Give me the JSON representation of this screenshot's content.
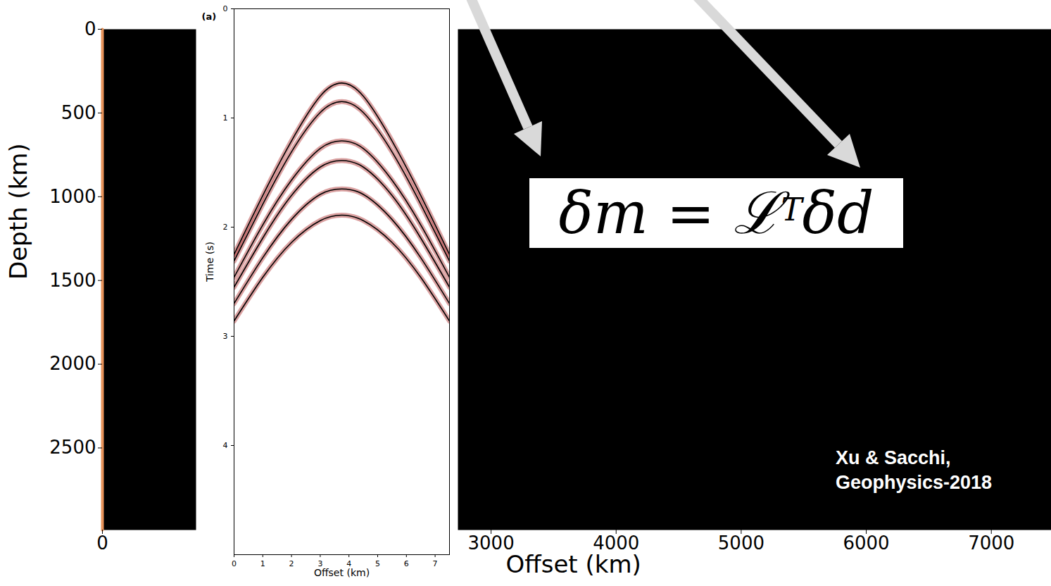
{
  "chart_data": [
    {
      "type": "line",
      "ylabel": "Depth (km)",
      "xlim": [
        0,
        1
      ],
      "xticks": [
        0
      ],
      "ylim": [
        0,
        2990
      ],
      "yticks": [
        0,
        500,
        1000,
        1500,
        2000,
        2500
      ],
      "x": [
        0,
        0
      ],
      "y": [
        0,
        2990
      ],
      "color": "#e8935a"
    },
    {
      "type": "line",
      "panel_label": "(a)",
      "xlabel": "Offset (km)",
      "ylabel": "Time (s)",
      "xlim": [
        0,
        7.5
      ],
      "xticks": [
        0,
        1,
        2,
        3,
        4,
        5,
        6,
        7
      ],
      "ylim": [
        0,
        5
      ],
      "yticks": [
        0,
        1,
        2,
        3,
        4
      ],
      "x": [
        0,
        1,
        2,
        3,
        3.75,
        4.5,
        5.5,
        6.5,
        7.5
      ],
      "color": "#b03030",
      "series": [
        {
          "values": [
            2.25,
            1.71,
            1.21,
            0.8,
            0.68,
            0.8,
            1.21,
            1.71,
            2.25
          ]
        },
        {
          "values": [
            2.31,
            1.79,
            1.31,
            0.95,
            0.85,
            0.95,
            1.31,
            1.79,
            2.31
          ]
        },
        {
          "values": [
            2.46,
            1.98,
            1.57,
            1.28,
            1.21,
            1.28,
            1.57,
            1.98,
            2.46
          ]
        },
        {
          "values": [
            2.55,
            2.1,
            1.71,
            1.45,
            1.39,
            1.45,
            1.71,
            2.1,
            2.55
          ]
        },
        {
          "values": [
            2.7,
            2.28,
            1.93,
            1.7,
            1.65,
            1.7,
            1.93,
            2.28,
            2.7
          ]
        },
        {
          "values": [
            2.86,
            2.46,
            2.14,
            1.94,
            1.89,
            1.94,
            2.14,
            2.46,
            2.86
          ]
        }
      ]
    },
    {
      "type": "image",
      "xlabel": "Offset (km)",
      "xlim": [
        2735,
        7480
      ],
      "xticks": [
        3000,
        4000,
        5000,
        6000,
        7000
      ],
      "tick_labels": "x",
      "formula": {
        "base": "δm = ℒ",
        "superscript": "T",
        "rest": "δd"
      },
      "citation": [
        "Xu & Sacchi,",
        "Geophysics-2018"
      ]
    }
  ]
}
